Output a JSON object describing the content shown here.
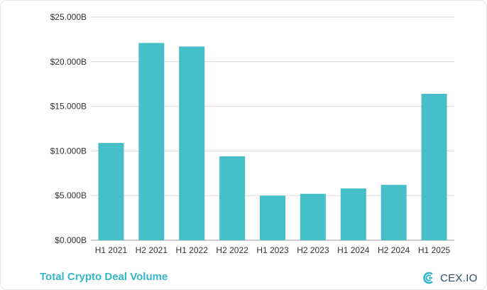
{
  "chart_data": {
    "type": "bar",
    "categories": [
      "H1 2021",
      "H2 2021",
      "H1 2022",
      "H2 2022",
      "H1 2023",
      "H2 2023",
      "H1 2024",
      "H2 2024",
      "H1 2025"
    ],
    "values": [
      10.9,
      22.1,
      21.7,
      9.4,
      5.0,
      5.2,
      5.8,
      6.2,
      16.4
    ],
    "y_ticks": [
      "$0.000B",
      "$5.000B",
      "$10.000B",
      "$15.000B",
      "$20.000B",
      "$25.000B"
    ],
    "ylim": [
      0,
      25
    ],
    "grid": true,
    "bar_color": "#45bfc8",
    "title": "",
    "xlabel": "",
    "ylabel": ""
  },
  "footer": {
    "title": "Total Crypto Deal Volume",
    "title_color": "#33b6c9"
  },
  "logo": {
    "text": "CEX.IO",
    "icon": "cex-logo-icon"
  }
}
